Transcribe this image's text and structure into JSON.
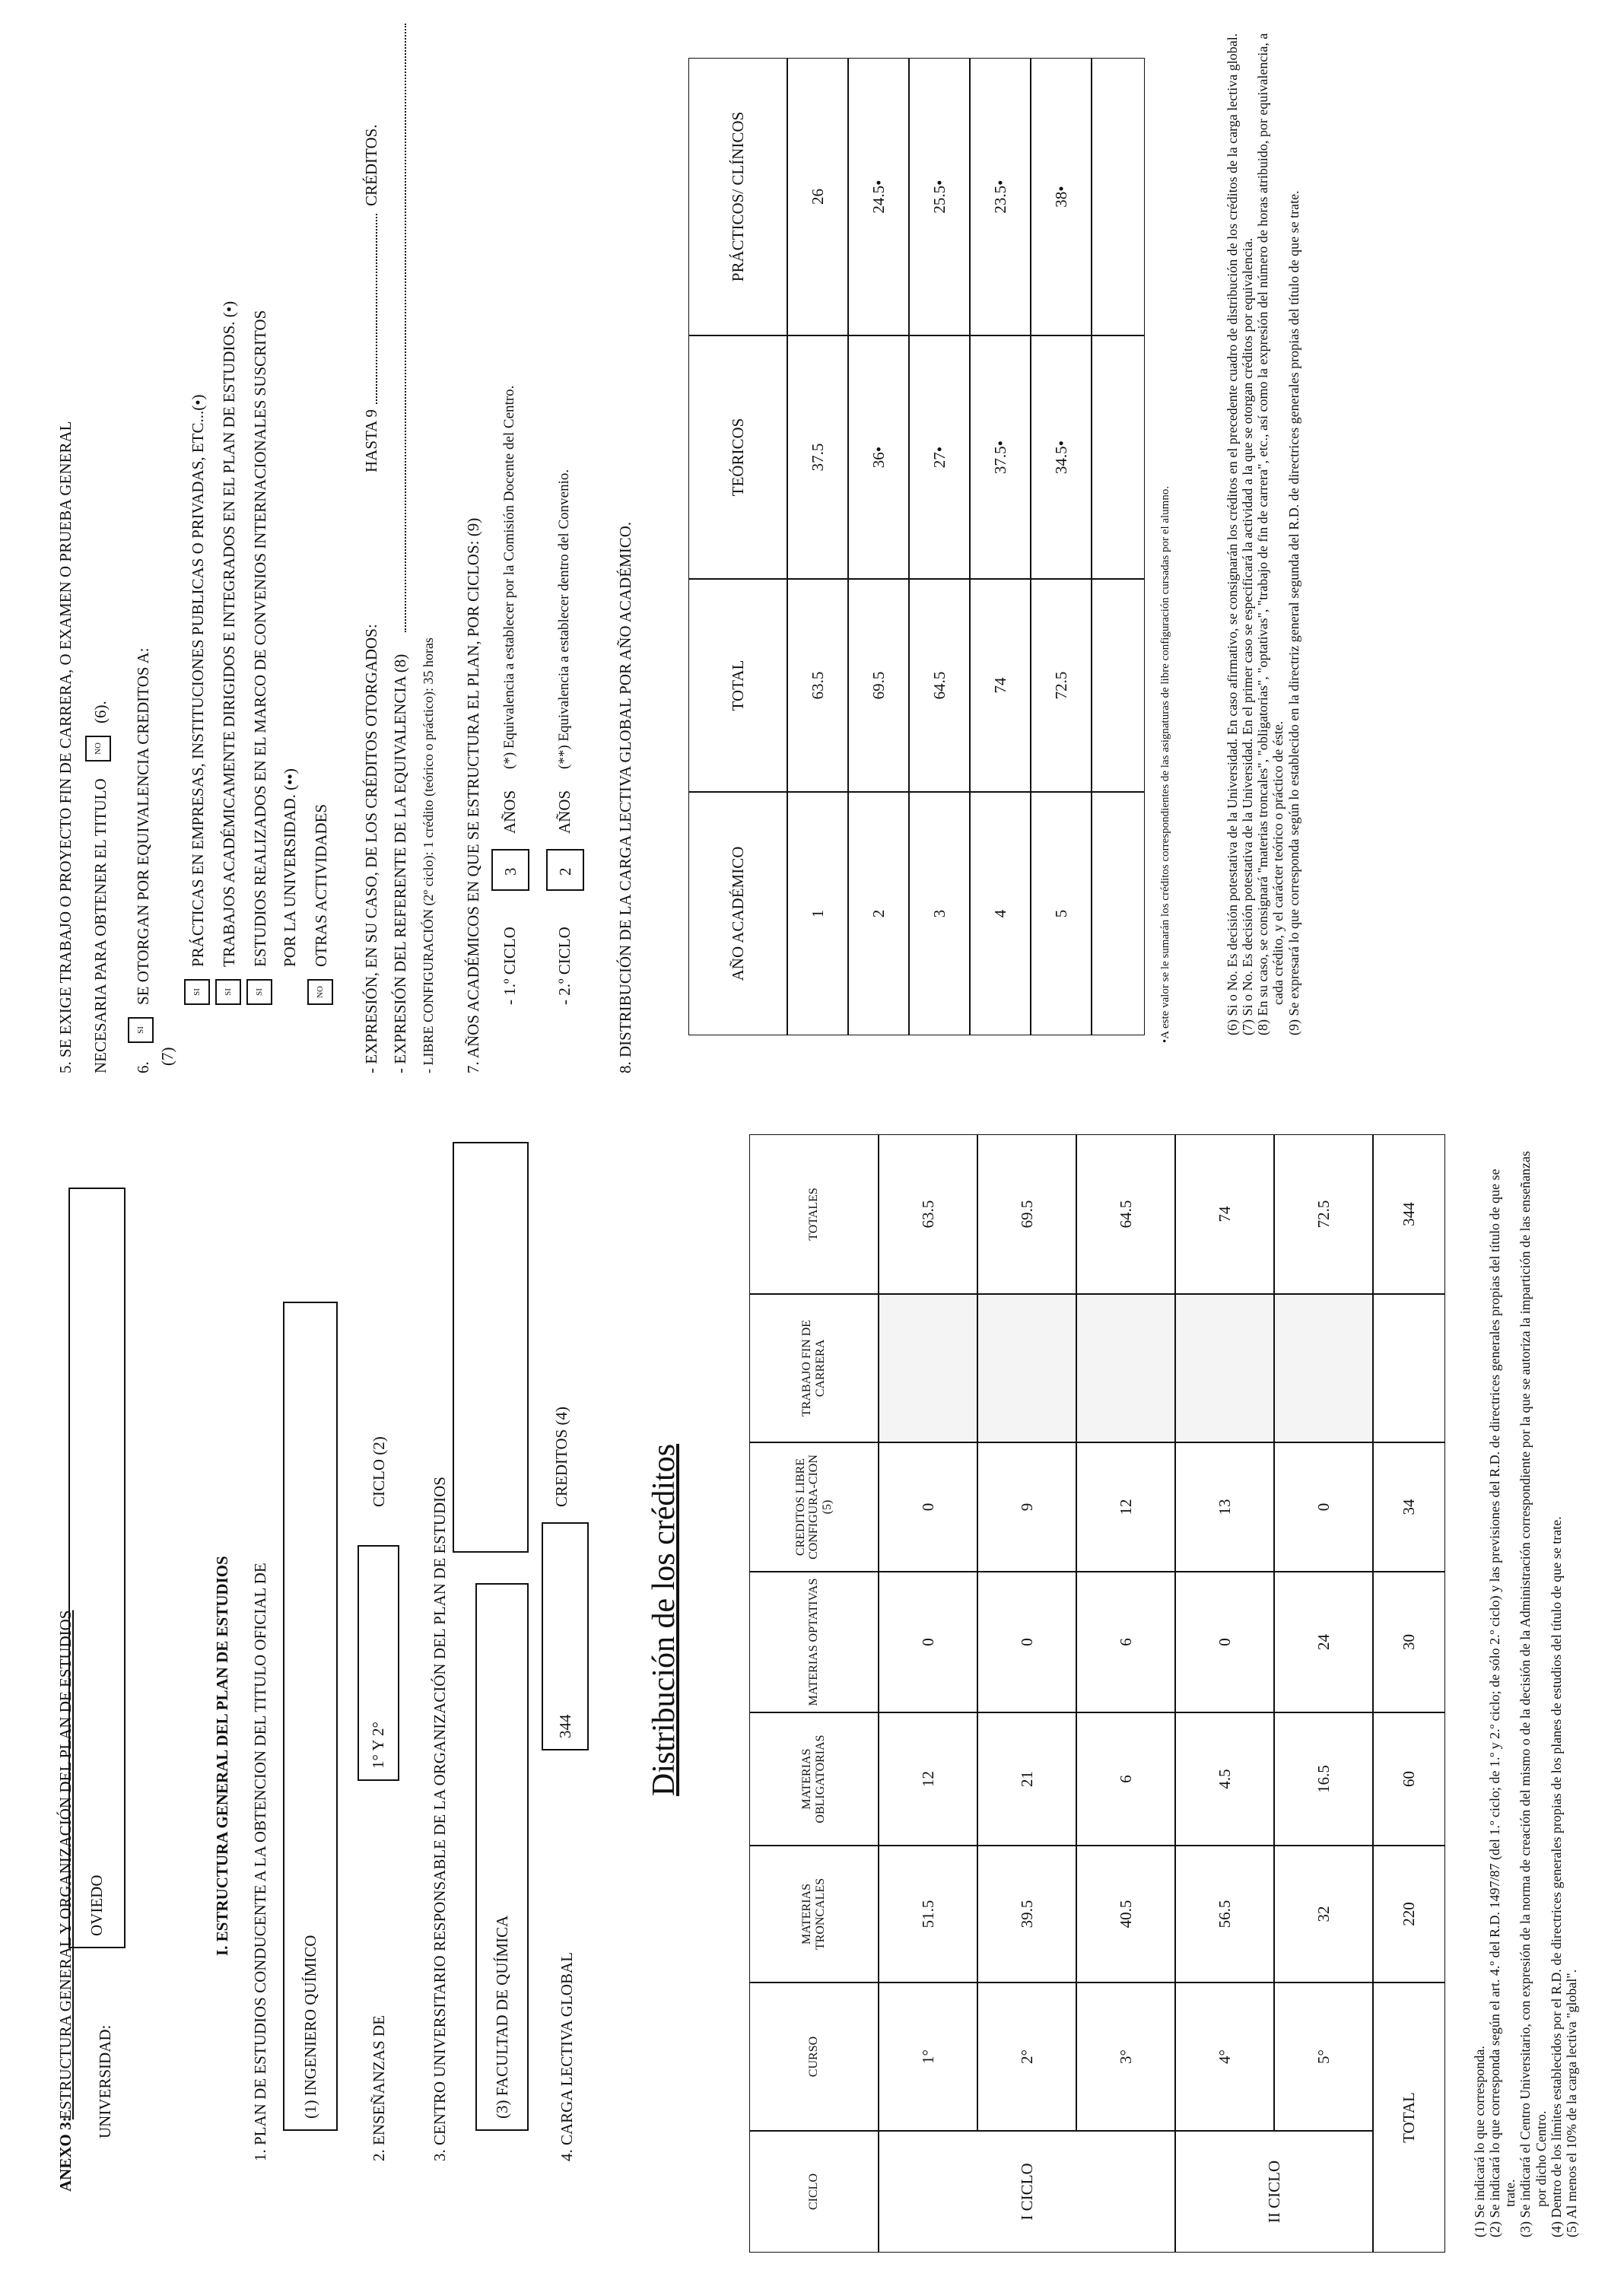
{
  "left": {
    "header": {
      "annex": "ANEXO 3:",
      "title": "ESTRUCTURA GENERAL Y ORGANIZACIÓN DEL PLAN DE ESTUDIOS"
    },
    "university_label": "UNIVERSIDAD:",
    "university": "OVIEDO",
    "section_title": "I. ESTRUCTURA GENERAL DEL PLAN DE ESTUDIOS",
    "item1": {
      "label": "1. PLAN DE ESTUDIOS CONDUCENTE A LA OBTENCION DEL TITULO OFICIAL DE",
      "value": "(1) INGENIERO QUÍMICO"
    },
    "item2": {
      "label": "2. ENSEÑANZAS DE",
      "value": "1° Y 2°",
      "suffix": "CICLO (2)"
    },
    "item3": {
      "label": "3. CENTRO UNIVERSITARIO RESPONSABLE DE LA ORGANIZACIÓN DEL PLAN DE ESTUDIOS",
      "value": "(3) FACULTAD DE QUÍMICA"
    },
    "item4": {
      "label": "4. CARGA LECTIVA GLOBAL",
      "value": "344",
      "suffix": "CREDITOS (4)"
    },
    "table_title": "Distribución de los créditos",
    "table": {
      "headers": [
        "CICLO",
        "CURSO",
        "MATERIAS TRONCALES",
        "MATERIAS OBLIGATORIAS",
        "MATERIAS OPTATIVAS",
        "CREDITOS LIBRE CONFIGURA-CION (5)",
        "TRABAJO FIN DE CARRERA",
        "TOTALES"
      ],
      "cycles": [
        "I CICLO",
        "II CICLO"
      ],
      "rows": [
        [
          "1°",
          "51.5",
          "12",
          "0",
          "0",
          "63.5"
        ],
        [
          "2°",
          "39.5",
          "21",
          "0",
          "9",
          "69.5"
        ],
        [
          "3°",
          "40.5",
          "6",
          "6",
          "12",
          "64.5"
        ],
        [
          "4°",
          "56.5",
          "4.5",
          "0",
          "13",
          "74"
        ],
        [
          "5°",
          "32",
          "16.5",
          "24",
          "0",
          "72.5"
        ]
      ],
      "total_label": "TOTAL",
      "total": [
        "220",
        "60",
        "30",
        "34",
        "344"
      ]
    },
    "footnotes": [
      "(1) Se indicará lo que corresponda.",
      "(2) Se indicará lo que corresponda según el art. 4.º del R.D. 1497/87 (del 1.º ciclo; de 1.º y 2.º ciclo; de sólo 2.º ciclo) y las previsiones del R.D. de directrices generales propias del título de que se trate.",
      "(3) Se indicará el Centro Universitario, con expresión de la norma de creación del mismo o de la decisión de la Administración correspondiente por la que se autoriza la impartición de las enseñanzas por dicho Centro.",
      "(4) Dentro de los límites establecidos por el R.D. de directrices generales propias de los planes de estudios del título de que se trate.",
      "(5) Al menos el 10% de la carga lectiva \"global\"."
    ]
  },
  "right": {
    "item5": {
      "line1": "5. SE EXIGE TRABAJO O PROYECTO FIN DE CARRERA, O EXAMEN O PRUEBA GENERAL",
      "line2": "NECESARIA  PARA OBTENER EL TITULO",
      "answer": "NO",
      "note": "(6)."
    },
    "item6": {
      "number": "6.",
      "answer": "SI",
      "text": "SE OTORGAN POR EQUIVALENCIA CREDITOS A:",
      "note": "(7)",
      "options": [
        {
          "answer": "SI",
          "lines": [
            "PRÁCTICAS EN EMPRESAS, INSTITUCIONES PUBLICAS O PRIVADAS, ETC...(•)"
          ]
        },
        {
          "answer": "SI",
          "lines": [
            "TRABAJOS ACADÉMICAMENTE DIRIGIDOS E INTEGRADOS EN EL PLAN DE ESTUDIOS. (•)"
          ]
        },
        {
          "answer": "SI",
          "lines": [
            "ESTUDIOS REALIZADOS EN EL MARCO DE CONVENIOS INTERNACIONALES SUSCRITOS",
            "POR LA UNIVERSIDAD. (••)"
          ]
        },
        {
          "answer": "NO",
          "lines": [
            "OTRAS ACTIVIDADES"
          ]
        }
      ]
    },
    "expressions": {
      "credits_label": "- EXPRESIÓN, EN SU CASO, DE LOS CRÉDITOS OTORGADOS:",
      "credits_value": "HASTA 9",
      "credits_unit": "CRÉDITOS.",
      "reference_label": "- EXPRESIÓN DEL REFERENTE DE LA EQUIVALENCIA (8)",
      "free_config": "- LIBRE CONFIGURACIÓN (2º ciclo): 1 crédito (teórico o práctico): 35 horas"
    },
    "item7": {
      "label": "7. AÑOS ACADÉMICOS EN QUE SE ESTRUCTURA EL PLAN, POR CICLOS: (9)",
      "cycles": [
        {
          "label": "- 1.º CICLO",
          "years": "3",
          "unit": "AÑOS",
          "note": "(*) Equivalencia a establecer por la Comisión Docente del Centro."
        },
        {
          "label": "- 2.º CICLO",
          "years": "2",
          "unit": "AÑOS",
          "note": "(**) Equivalencia a establecer dentro del Convenio."
        }
      ]
    },
    "item8": "8. DISTRIBUCIÓN DE LA CARGA LECTIVA GLOBAL POR AÑO ACADÉMICO.",
    "table": {
      "headers": [
        "AÑO ACADÉMICO",
        "TOTAL",
        "TEÓRICOS",
        "PRÁCTICOS/ CLÍNICOS"
      ],
      "rows": [
        [
          "1",
          "63.5",
          "37.5",
          "26"
        ],
        [
          "2",
          "69.5",
          "36•",
          "24.5•"
        ],
        [
          "3",
          "64.5",
          "27•",
          "25.5•"
        ],
        [
          "4",
          "74",
          "37.5•",
          "23.5•"
        ],
        [
          "5",
          "72.5",
          "34.5•",
          "38•"
        ]
      ]
    },
    "star_note": "•A este valor se le sumarán los créditos correspondientes de las asignaturas de libre configuración cursadas por el alumno.",
    "footnotes": [
      "(6) Si o No. Es decisión potestativa de la Universidad. En caso afirmativo, se consignarán los créditos en el precedente cuadro de distribución de los créditos de la carga lectiva global.",
      "(7) Si o No. Es decisión potestativa de la Universidad. En el primer caso se especificará la actividad a la que se otorgan créditos por equivalencia.",
      "(8) En su caso, se consignará \"materias troncales\", \"obligatorias\", \"optativas\", \"trabajo de fin de carrera\", etc., así como la expresión del número de horas atribuido, por equivalencia, a cada crédito, y el carácter teórico o práctico de éste.",
      "(9) Se expresará lo que corresponda según lo establecido en la directriz general segunda del R.D. de directrices generales propias del título de que se trate."
    ]
  }
}
